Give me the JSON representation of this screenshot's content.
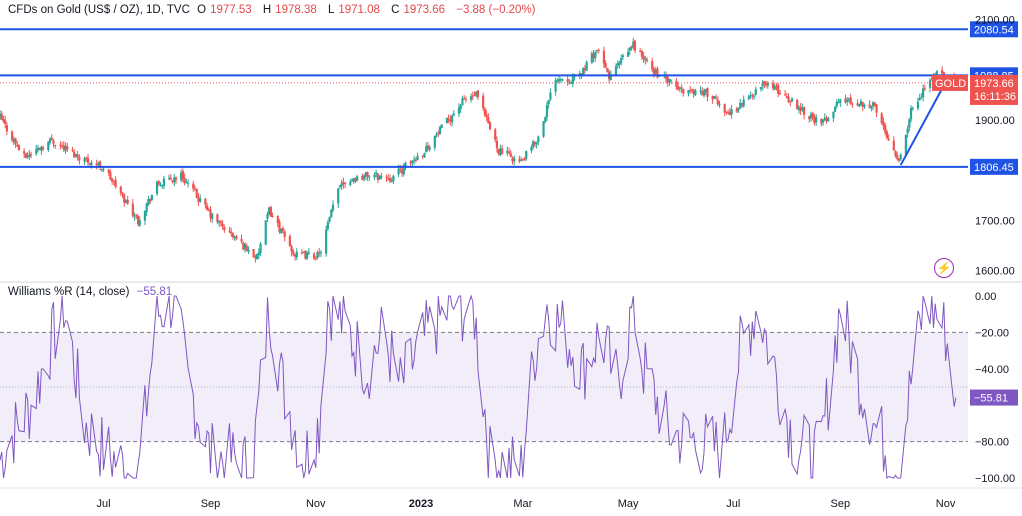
{
  "header": {
    "symbol": "CFDs on Gold (US$ / OZ), 1D, TVC",
    "o_label": "O",
    "o_value": "1977.53",
    "h_label": "H",
    "h_value": "1978.38",
    "l_label": "L",
    "l_value": "1971.08",
    "c_label": "C",
    "c_value": "1973.66",
    "change": "−3.88 (−0.20%)"
  },
  "indicator": {
    "title": "Williams %R (14, close)",
    "value": "−55.81"
  },
  "colors": {
    "up": "#26a69a",
    "down": "#ef5350",
    "level_line": "#1e53e5",
    "wr_line": "#7e57c2",
    "wr_band": "rgba(126,87,194,0.10)",
    "gold_tag": "#ef5350"
  },
  "icons": {
    "replay": "lightning-bolt-icon"
  },
  "chart_data": [
    {
      "type": "candlestick",
      "title": "CFDs on Gold (US$ / OZ), 1D, TVC",
      "ylim": [
        1585,
        2115
      ],
      "y_ticks": [
        "2100.00",
        "1900.00",
        "1700.00",
        "1600.00"
      ],
      "y_tick_values": [
        2100,
        1900,
        1700,
        1600
      ],
      "x_ticks": [
        "Jul",
        "Sep",
        "Nov",
        "2023",
        "Mar",
        "May",
        "Jul",
        "Sep",
        "Nov"
      ],
      "x_tick_dates": [
        "2022-07-01",
        "2022-09-01",
        "2022-11-01",
        "2023-01-01",
        "2023-03-01",
        "2023-05-01",
        "2023-07-01",
        "2023-09-01",
        "2023-11-01"
      ],
      "x_range": [
        "2022-05-02",
        "2023-11-14"
      ],
      "horizontal_levels": [
        {
          "label": "2080.54",
          "value": 2080.54
        },
        {
          "label": "1988.85",
          "value": 1988.85
        },
        {
          "label": "1806.45",
          "value": 1806.45
        }
      ],
      "price_tag": {
        "label": "GOLD",
        "value": "1973.66",
        "countdown": "16:11:36",
        "level": 1973.66
      },
      "trendline": [
        {
          "date": "2023-10-06",
          "value": 1810
        },
        {
          "date": "2023-11-01",
          "value": 1975
        }
      ],
      "close_anchors": [
        [
          "2022-05-02",
          1905
        ],
        [
          "2022-05-16",
          1825
        ],
        [
          "2022-06-01",
          1860
        ],
        [
          "2022-06-15",
          1830
        ],
        [
          "2022-07-01",
          1805
        ],
        [
          "2022-07-21",
          1700
        ],
        [
          "2022-08-01",
          1770
        ],
        [
          "2022-08-15",
          1790
        ],
        [
          "2022-09-01",
          1710
        ],
        [
          "2022-09-15",
          1665
        ],
        [
          "2022-09-28",
          1625
        ],
        [
          "2022-10-05",
          1720
        ],
        [
          "2022-10-20",
          1630
        ],
        [
          "2022-11-03",
          1630
        ],
        [
          "2022-11-15",
          1775
        ],
        [
          "2022-12-01",
          1790
        ],
        [
          "2022-12-15",
          1785
        ],
        [
          "2023-01-02",
          1835
        ],
        [
          "2023-01-26",
          1940
        ],
        [
          "2023-02-02",
          1950
        ],
        [
          "2023-02-15",
          1840
        ],
        [
          "2023-02-28",
          1815
        ],
        [
          "2023-03-10",
          1865
        ],
        [
          "2023-03-20",
          1985
        ],
        [
          "2023-04-01",
          1980
        ],
        [
          "2023-04-13",
          2040
        ],
        [
          "2023-04-20",
          1985
        ],
        [
          "2023-05-04",
          2050
        ],
        [
          "2023-05-15",
          2000
        ],
        [
          "2023-05-31",
          1960
        ],
        [
          "2023-06-15",
          1955
        ],
        [
          "2023-06-29",
          1912
        ],
        [
          "2023-07-20",
          1975
        ],
        [
          "2023-08-01",
          1945
        ],
        [
          "2023-08-21",
          1890
        ],
        [
          "2023-09-01",
          1940
        ],
        [
          "2023-09-20",
          1930
        ],
        [
          "2023-10-05",
          1820
        ],
        [
          "2023-10-13",
          1930
        ],
        [
          "2023-10-27",
          1995
        ],
        [
          "2023-11-01",
          1982
        ],
        [
          "2023-11-07",
          1973.66
        ]
      ]
    },
    {
      "type": "line",
      "title": "Williams %R (14, close)",
      "ylim": [
        -100,
        0
      ],
      "y_ticks": [
        "0.00",
        "−20.00",
        "−40.00",
        "−80.00",
        "−100.00"
      ],
      "y_tick_values": [
        0,
        -20,
        -40,
        -80,
        -100
      ],
      "bands": [
        -20,
        -80
      ],
      "midline": -50,
      "last_value": -55.81,
      "anchors": [
        [
          "2022-05-02",
          -90
        ],
        [
          "2022-05-10",
          -75
        ],
        [
          "2022-05-20",
          -60
        ],
        [
          "2022-06-01",
          -25
        ],
        [
          "2022-06-08",
          -5
        ],
        [
          "2022-06-20",
          -70
        ],
        [
          "2022-07-01",
          -85
        ],
        [
          "2022-07-21",
          -100
        ],
        [
          "2022-08-01",
          -10
        ],
        [
          "2022-08-10",
          -2
        ],
        [
          "2022-08-20",
          -50
        ],
        [
          "2022-09-01",
          -88
        ],
        [
          "2022-09-15",
          -90
        ],
        [
          "2022-09-25",
          -95
        ],
        [
          "2022-10-05",
          -5
        ],
        [
          "2022-10-13",
          -50
        ],
        [
          "2022-10-25",
          -90
        ],
        [
          "2022-11-03",
          -70
        ],
        [
          "2022-11-08",
          -2
        ],
        [
          "2022-11-20",
          -20
        ],
        [
          "2022-12-01",
          -40
        ],
        [
          "2022-12-10",
          -20
        ],
        [
          "2022-12-20",
          -50
        ],
        [
          "2023-01-05",
          -20
        ],
        [
          "2023-01-20",
          -5
        ],
        [
          "2023-02-01",
          -10
        ],
        [
          "2023-02-10",
          -90
        ],
        [
          "2023-02-28",
          -95
        ],
        [
          "2023-03-08",
          -30
        ],
        [
          "2023-03-15",
          -5
        ],
        [
          "2023-03-25",
          -20
        ],
        [
          "2023-04-05",
          -40
        ],
        [
          "2023-04-15",
          -20
        ],
        [
          "2023-04-25",
          -50
        ],
        [
          "2023-05-04",
          -5
        ],
        [
          "2023-05-10",
          -40
        ],
        [
          "2023-05-25",
          -75
        ],
        [
          "2023-06-10",
          -80
        ],
        [
          "2023-06-25",
          -85
        ],
        [
          "2023-07-05",
          -30
        ],
        [
          "2023-07-15",
          -5
        ],
        [
          "2023-07-25",
          -40
        ],
        [
          "2023-08-05",
          -80
        ],
        [
          "2023-08-20",
          -90
        ],
        [
          "2023-09-01",
          -5
        ],
        [
          "2023-09-10",
          -40
        ],
        [
          "2023-09-20",
          -70
        ],
        [
          "2023-10-05",
          -95
        ],
        [
          "2023-10-13",
          -40
        ],
        [
          "2023-10-20",
          -2
        ],
        [
          "2023-10-27",
          -10
        ],
        [
          "2023-11-01",
          -20
        ],
        [
          "2023-11-07",
          -55.81
        ]
      ]
    }
  ]
}
